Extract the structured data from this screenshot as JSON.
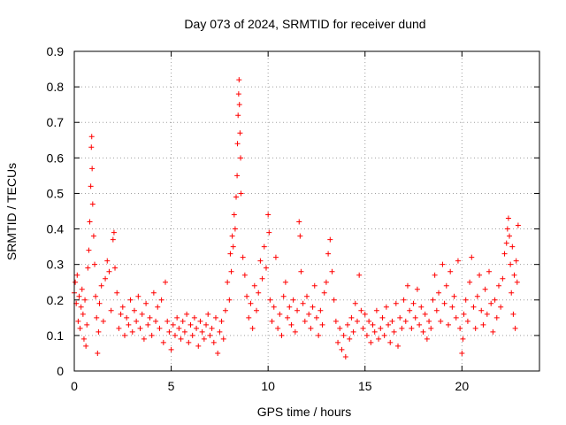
{
  "chart_data": {
    "type": "scatter",
    "title": "Day 073 of 2024, SRMTID for receiver dund",
    "xlabel": "GPS time / hours",
    "ylabel": "SRMTID / TECUs",
    "xlim": [
      0,
      24
    ],
    "ylim": [
      0,
      0.9
    ],
    "xticks": [
      0,
      5,
      10,
      15,
      20
    ],
    "xtick_labels": [
      "0",
      "5",
      "10",
      "15",
      "20"
    ],
    "yticks": [
      0,
      0.1,
      0.2,
      0.3,
      0.4,
      0.5,
      0.6,
      0.7,
      0.8,
      0.9
    ],
    "ytick_labels": [
      "0",
      "0.1",
      "0.2",
      "0.3",
      "0.4",
      "0.5",
      "0.6",
      "0.7",
      "0.8",
      "0.9"
    ],
    "grid": true,
    "marker": "+",
    "marker_color": "#ff0000",
    "series": [
      {
        "name": "SRMTID",
        "points": [
          [
            0.0,
            0.22
          ],
          [
            0.05,
            0.25
          ],
          [
            0.1,
            0.19
          ],
          [
            0.15,
            0.27
          ],
          [
            0.2,
            0.14
          ],
          [
            0.25,
            0.21
          ],
          [
            0.3,
            0.12
          ],
          [
            0.35,
            0.18
          ],
          [
            0.4,
            0.23
          ],
          [
            0.45,
            0.16
          ],
          [
            0.5,
            0.09
          ],
          [
            0.55,
            0.2
          ],
          [
            0.6,
            0.07
          ],
          [
            0.65,
            0.13
          ],
          [
            0.7,
            0.29
          ],
          [
            0.75,
            0.34
          ],
          [
            0.8,
            0.42
          ],
          [
            0.85,
            0.52
          ],
          [
            0.88,
            0.63
          ],
          [
            0.9,
            0.66
          ],
          [
            0.92,
            0.57
          ],
          [
            0.95,
            0.47
          ],
          [
            1.0,
            0.38
          ],
          [
            1.05,
            0.3
          ],
          [
            1.1,
            0.21
          ],
          [
            1.15,
            0.15
          ],
          [
            1.2,
            0.05
          ],
          [
            1.25,
            0.11
          ],
          [
            1.3,
            0.19
          ],
          [
            1.4,
            0.24
          ],
          [
            1.5,
            0.14
          ],
          [
            1.6,
            0.26
          ],
          [
            1.7,
            0.31
          ],
          [
            1.8,
            0.28
          ],
          [
            1.9,
            0.17
          ],
          [
            2.0,
            0.37
          ],
          [
            2.05,
            0.39
          ],
          [
            2.1,
            0.29
          ],
          [
            2.2,
            0.22
          ],
          [
            2.3,
            0.12
          ],
          [
            2.4,
            0.16
          ],
          [
            2.5,
            0.18
          ],
          [
            2.6,
            0.1
          ],
          [
            2.7,
            0.15
          ],
          [
            2.8,
            0.13
          ],
          [
            2.9,
            0.2
          ],
          [
            3.0,
            0.11
          ],
          [
            3.1,
            0.17
          ],
          [
            3.2,
            0.14
          ],
          [
            3.3,
            0.21
          ],
          [
            3.4,
            0.12
          ],
          [
            3.5,
            0.16
          ],
          [
            3.6,
            0.09
          ],
          [
            3.7,
            0.19
          ],
          [
            3.8,
            0.13
          ],
          [
            3.9,
            0.15
          ],
          [
            4.0,
            0.1
          ],
          [
            4.1,
            0.22
          ],
          [
            4.2,
            0.14
          ],
          [
            4.3,
            0.18
          ],
          [
            4.4,
            0.12
          ],
          [
            4.5,
            0.2
          ],
          [
            4.6,
            0.08
          ],
          [
            4.7,
            0.25
          ],
          [
            4.8,
            0.14
          ],
          [
            4.9,
            0.11
          ],
          [
            5.0,
            0.06
          ],
          [
            5.1,
            0.13
          ],
          [
            5.2,
            0.1
          ],
          [
            5.3,
            0.15
          ],
          [
            5.4,
            0.12
          ],
          [
            5.5,
            0.09
          ],
          [
            5.6,
            0.14
          ],
          [
            5.7,
            0.11
          ],
          [
            5.8,
            0.16
          ],
          [
            5.9,
            0.08
          ],
          [
            6.0,
            0.13
          ],
          [
            6.1,
            0.1
          ],
          [
            6.2,
            0.15
          ],
          [
            6.3,
            0.12
          ],
          [
            6.4,
            0.07
          ],
          [
            6.5,
            0.14
          ],
          [
            6.6,
            0.11
          ],
          [
            6.7,
            0.09
          ],
          [
            6.8,
            0.13
          ],
          [
            6.9,
            0.16
          ],
          [
            7.0,
            0.1
          ],
          [
            7.1,
            0.12
          ],
          [
            7.2,
            0.08
          ],
          [
            7.3,
            0.15
          ],
          [
            7.4,
            0.05
          ],
          [
            7.5,
            0.11
          ],
          [
            7.6,
            0.14
          ],
          [
            7.7,
            0.09
          ],
          [
            7.8,
            0.17
          ],
          [
            7.9,
            0.25
          ],
          [
            8.0,
            0.2
          ],
          [
            8.05,
            0.33
          ],
          [
            8.1,
            0.28
          ],
          [
            8.15,
            0.38
          ],
          [
            8.2,
            0.35
          ],
          [
            8.25,
            0.44
          ],
          [
            8.3,
            0.4
          ],
          [
            8.35,
            0.49
          ],
          [
            8.4,
            0.55
          ],
          [
            8.42,
            0.64
          ],
          [
            8.45,
            0.72
          ],
          [
            8.48,
            0.78
          ],
          [
            8.5,
            0.82
          ],
          [
            8.52,
            0.75
          ],
          [
            8.55,
            0.67
          ],
          [
            8.58,
            0.6
          ],
          [
            8.6,
            0.5
          ],
          [
            8.7,
            0.32
          ],
          [
            8.8,
            0.27
          ],
          [
            8.9,
            0.21
          ],
          [
            9.0,
            0.15
          ],
          [
            9.1,
            0.19
          ],
          [
            9.2,
            0.12
          ],
          [
            9.3,
            0.24
          ],
          [
            9.4,
            0.17
          ],
          [
            9.5,
            0.22
          ],
          [
            9.6,
            0.31
          ],
          [
            9.7,
            0.26
          ],
          [
            9.8,
            0.35
          ],
          [
            9.9,
            0.29
          ],
          [
            10.0,
            0.44
          ],
          [
            10.05,
            0.39
          ],
          [
            10.1,
            0.2
          ],
          [
            10.2,
            0.14
          ],
          [
            10.3,
            0.18
          ],
          [
            10.4,
            0.32
          ],
          [
            10.5,
            0.12
          ],
          [
            10.6,
            0.16
          ],
          [
            10.7,
            0.1
          ],
          [
            10.8,
            0.21
          ],
          [
            10.9,
            0.25
          ],
          [
            11.0,
            0.15
          ],
          [
            11.1,
            0.18
          ],
          [
            11.2,
            0.13
          ],
          [
            11.3,
            0.2
          ],
          [
            11.4,
            0.11
          ],
          [
            11.5,
            0.17
          ],
          [
            11.6,
            0.42
          ],
          [
            11.65,
            0.38
          ],
          [
            11.7,
            0.28
          ],
          [
            11.8,
            0.19
          ],
          [
            11.9,
            0.14
          ],
          [
            12.0,
            0.21
          ],
          [
            12.1,
            0.16
          ],
          [
            12.2,
            0.12
          ],
          [
            12.3,
            0.18
          ],
          [
            12.4,
            0.24
          ],
          [
            12.5,
            0.15
          ],
          [
            12.6,
            0.1
          ],
          [
            12.7,
            0.17
          ],
          [
            12.8,
            0.13
          ],
          [
            12.9,
            0.22
          ],
          [
            13.0,
            0.25
          ],
          [
            13.1,
            0.33
          ],
          [
            13.2,
            0.37
          ],
          [
            13.3,
            0.28
          ],
          [
            13.4,
            0.2
          ],
          [
            13.5,
            0.14
          ],
          [
            13.6,
            0.08
          ],
          [
            13.7,
            0.12
          ],
          [
            13.8,
            0.06
          ],
          [
            13.9,
            0.1
          ],
          [
            14.0,
            0.04
          ],
          [
            14.1,
            0.13
          ],
          [
            14.2,
            0.09
          ],
          [
            14.3,
            0.15
          ],
          [
            14.4,
            0.11
          ],
          [
            14.5,
            0.19
          ],
          [
            14.6,
            0.14
          ],
          [
            14.7,
            0.27
          ],
          [
            14.8,
            0.17
          ],
          [
            14.9,
            0.12
          ],
          [
            15.0,
            0.16
          ],
          [
            15.1,
            0.1
          ],
          [
            15.2,
            0.14
          ],
          [
            15.3,
            0.08
          ],
          [
            15.4,
            0.13
          ],
          [
            15.5,
            0.11
          ],
          [
            15.6,
            0.17
          ],
          [
            15.7,
            0.09
          ],
          [
            15.8,
            0.12
          ],
          [
            15.9,
            0.15
          ],
          [
            16.0,
            0.1
          ],
          [
            16.1,
            0.18
          ],
          [
            16.2,
            0.13
          ],
          [
            16.3,
            0.08
          ],
          [
            16.4,
            0.14
          ],
          [
            16.5,
            0.11
          ],
          [
            16.6,
            0.19
          ],
          [
            16.7,
            0.07
          ],
          [
            16.8,
            0.15
          ],
          [
            16.9,
            0.12
          ],
          [
            17.0,
            0.2
          ],
          [
            17.1,
            0.14
          ],
          [
            17.2,
            0.24
          ],
          [
            17.3,
            0.17
          ],
          [
            17.4,
            0.12
          ],
          [
            17.5,
            0.19
          ],
          [
            17.6,
            0.15
          ],
          [
            17.7,
            0.23
          ],
          [
            17.8,
            0.13
          ],
          [
            17.9,
            0.18
          ],
          [
            18.0,
            0.11
          ],
          [
            18.1,
            0.16
          ],
          [
            18.2,
            0.09
          ],
          [
            18.3,
            0.14
          ],
          [
            18.4,
            0.12
          ],
          [
            18.5,
            0.2
          ],
          [
            18.6,
            0.27
          ],
          [
            18.7,
            0.17
          ],
          [
            18.8,
            0.22
          ],
          [
            18.9,
            0.14
          ],
          [
            19.0,
            0.3
          ],
          [
            19.1,
            0.19
          ],
          [
            19.2,
            0.24
          ],
          [
            19.3,
            0.13
          ],
          [
            19.4,
            0.28
          ],
          [
            19.5,
            0.18
          ],
          [
            19.6,
            0.21
          ],
          [
            19.7,
            0.15
          ],
          [
            19.8,
            0.31
          ],
          [
            19.9,
            0.12
          ],
          [
            20.0,
            0.05
          ],
          [
            20.05,
            0.09
          ],
          [
            20.1,
            0.16
          ],
          [
            20.2,
            0.2
          ],
          [
            20.3,
            0.14
          ],
          [
            20.4,
            0.25
          ],
          [
            20.5,
            0.32
          ],
          [
            20.6,
            0.18
          ],
          [
            20.7,
            0.12
          ],
          [
            20.8,
            0.21
          ],
          [
            20.9,
            0.27
          ],
          [
            21.0,
            0.17
          ],
          [
            21.1,
            0.13
          ],
          [
            21.2,
            0.23
          ],
          [
            21.3,
            0.16
          ],
          [
            21.4,
            0.28
          ],
          [
            21.5,
            0.19
          ],
          [
            21.6,
            0.11
          ],
          [
            21.7,
            0.2
          ],
          [
            21.8,
            0.15
          ],
          [
            21.9,
            0.24
          ],
          [
            22.0,
            0.18
          ],
          [
            22.1,
            0.26
          ],
          [
            22.2,
            0.33
          ],
          [
            22.3,
            0.36
          ],
          [
            22.35,
            0.4
          ],
          [
            22.4,
            0.43
          ],
          [
            22.45,
            0.38
          ],
          [
            22.5,
            0.3
          ],
          [
            22.55,
            0.22
          ],
          [
            22.6,
            0.35
          ],
          [
            22.65,
            0.16
          ],
          [
            22.7,
            0.27
          ],
          [
            22.75,
            0.12
          ],
          [
            22.8,
            0.31
          ],
          [
            22.85,
            0.25
          ],
          [
            22.9,
            0.41
          ]
        ]
      }
    ]
  }
}
